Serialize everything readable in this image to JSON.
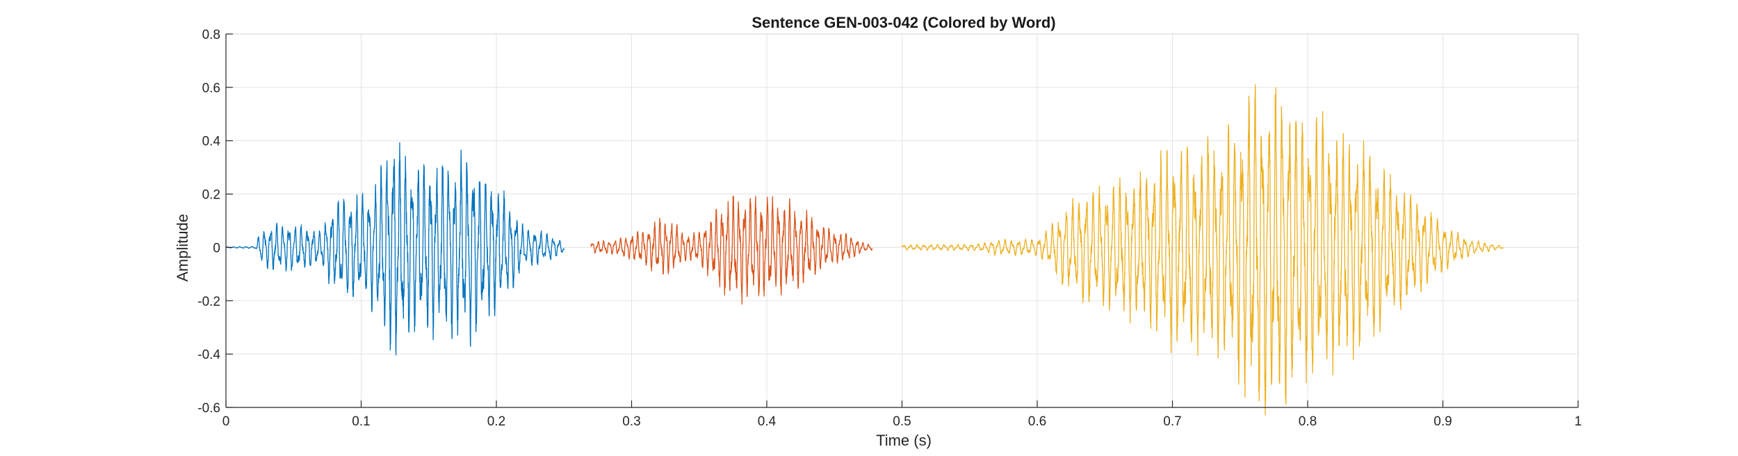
{
  "chart_data": {
    "type": "line",
    "title": "Sentence GEN-003-042 (Colored by Word)",
    "xlabel": "Time (s)",
    "ylabel": "Amplitude",
    "xlim": [
      0,
      1
    ],
    "ylim": [
      -0.6,
      0.8
    ],
    "xticks": [
      0,
      0.1,
      0.2,
      0.3,
      0.4,
      0.5,
      0.6,
      0.7,
      0.8,
      0.9,
      1
    ],
    "xtick_labels": [
      "0",
      "0.1",
      "0.2",
      "0.3",
      "0.4",
      "0.5",
      "0.6",
      "0.7",
      "0.8",
      "0.9",
      "1"
    ],
    "yticks": [
      -0.6,
      -0.4,
      -0.2,
      0,
      0.2,
      0.4,
      0.6,
      0.8
    ],
    "ytick_labels": [
      "-0.6",
      "-0.4",
      "-0.2",
      "0",
      "0.2",
      "0.4",
      "0.6",
      "0.8"
    ],
    "grid": true,
    "legend": "none",
    "series": [
      {
        "color": "#0072BD",
        "x_range": [
          0.0,
          0.25
        ],
        "freq_hz": 220,
        "envelope": [
          [
            0.0,
            0.002
          ],
          [
            0.022,
            0.004
          ],
          [
            0.025,
            0.06
          ],
          [
            0.035,
            0.09
          ],
          [
            0.05,
            0.09
          ],
          [
            0.06,
            0.08
          ],
          [
            0.07,
            0.06
          ],
          [
            0.075,
            0.12
          ],
          [
            0.085,
            0.2
          ],
          [
            0.1,
            0.19
          ],
          [
            0.11,
            0.24
          ],
          [
            0.12,
            0.38
          ],
          [
            0.125,
            0.44
          ],
          [
            0.13,
            0.37
          ],
          [
            0.14,
            0.3
          ],
          [
            0.15,
            0.32
          ],
          [
            0.16,
            0.33
          ],
          [
            0.17,
            0.34
          ],
          [
            0.18,
            0.36
          ],
          [
            0.19,
            0.28
          ],
          [
            0.2,
            0.25
          ],
          [
            0.21,
            0.17
          ],
          [
            0.22,
            0.08
          ],
          [
            0.24,
            0.05
          ],
          [
            0.25,
            0.02
          ]
        ]
      },
      {
        "color": "#D95319",
        "x_range": [
          0.27,
          0.478
        ],
        "freq_hz": 240,
        "envelope": [
          [
            0.27,
            0.02
          ],
          [
            0.29,
            0.03
          ],
          [
            0.31,
            0.07
          ],
          [
            0.32,
            0.11
          ],
          [
            0.33,
            0.1
          ],
          [
            0.34,
            0.05
          ],
          [
            0.35,
            0.06
          ],
          [
            0.36,
            0.13
          ],
          [
            0.37,
            0.19
          ],
          [
            0.38,
            0.2
          ],
          [
            0.39,
            0.2
          ],
          [
            0.4,
            0.19
          ],
          [
            0.41,
            0.18
          ],
          [
            0.42,
            0.16
          ],
          [
            0.43,
            0.13
          ],
          [
            0.44,
            0.09
          ],
          [
            0.45,
            0.06
          ],
          [
            0.46,
            0.05
          ],
          [
            0.47,
            0.02
          ],
          [
            0.478,
            0.01
          ]
        ]
      },
      {
        "color": "#EDB120",
        "x_range": [
          0.5,
          0.945
        ],
        "freq_hz": 200,
        "envelope": [
          [
            0.5,
            0.01
          ],
          [
            0.55,
            0.012
          ],
          [
            0.56,
            0.015
          ],
          [
            0.57,
            0.03
          ],
          [
            0.6,
            0.03
          ],
          [
            0.61,
            0.08
          ],
          [
            0.62,
            0.15
          ],
          [
            0.64,
            0.22
          ],
          [
            0.66,
            0.25
          ],
          [
            0.68,
            0.28
          ],
          [
            0.7,
            0.38
          ],
          [
            0.72,
            0.38
          ],
          [
            0.74,
            0.42
          ],
          [
            0.76,
            0.6
          ],
          [
            0.78,
            0.6
          ],
          [
            0.8,
            0.5
          ],
          [
            0.82,
            0.45
          ],
          [
            0.84,
            0.38
          ],
          [
            0.86,
            0.28
          ],
          [
            0.88,
            0.18
          ],
          [
            0.9,
            0.09
          ],
          [
            0.92,
            0.03
          ],
          [
            0.945,
            0.004
          ]
        ]
      }
    ]
  }
}
